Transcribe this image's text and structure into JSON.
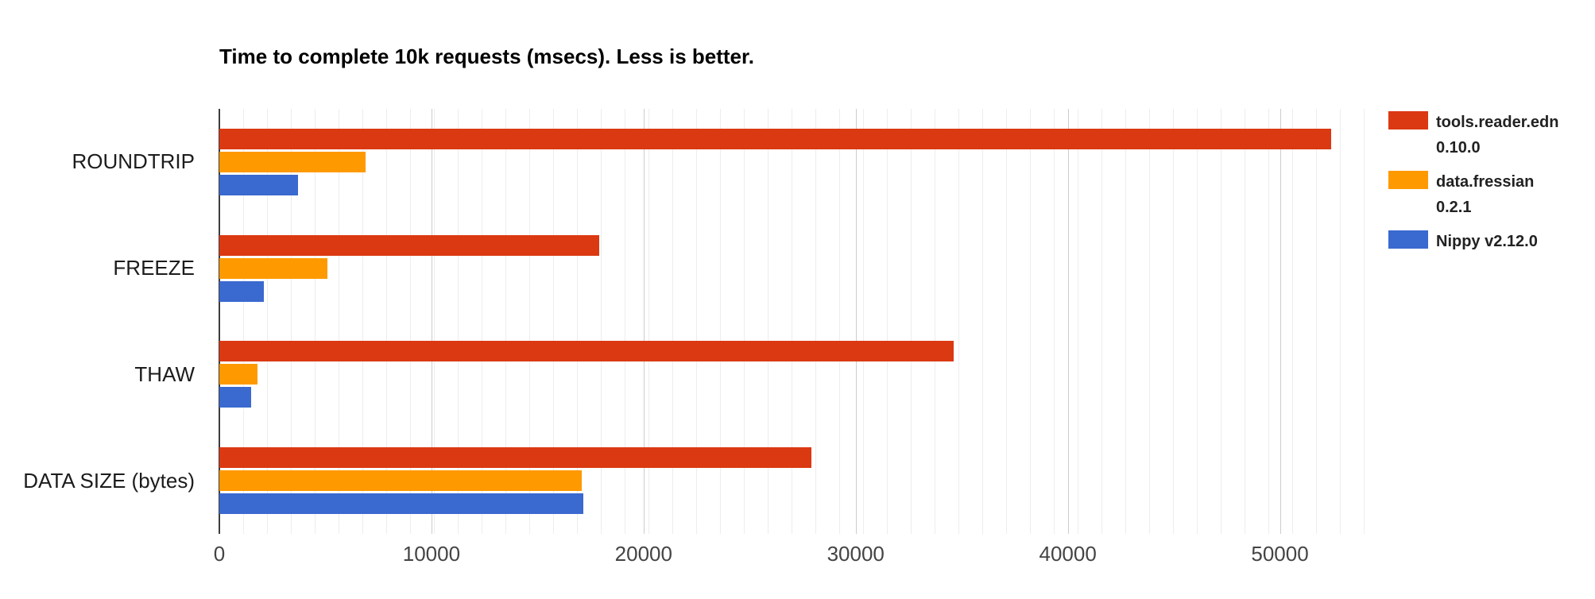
{
  "chart_data": {
    "type": "bar",
    "orientation": "horizontal",
    "title": "Time to complete 10k requests (msecs). Less is better.",
    "categories": [
      "ROUNDTRIP",
      "FREEZE",
      "THAW",
      "DATA SIZE (bytes)"
    ],
    "series": [
      {
        "name": "tools.reader.edn 0.10.0",
        "legend_lines": [
          "tools.reader.edn",
          "0.10.0"
        ],
        "color": "#db3912",
        "values": [
          52400,
          17900,
          34600,
          27900
        ]
      },
      {
        "name": "data.fressian 0.2.1",
        "legend_lines": [
          "data.fressian",
          "0.2.1"
        ],
        "color": "#ff9900",
        "values": [
          6900,
          5100,
          1800,
          17100
        ]
      },
      {
        "name": "Nippy v2.12.0",
        "legend_lines": [
          "Nippy v2.12.0"
        ],
        "color": "#3a69cf",
        "values": [
          3700,
          2100,
          1500,
          17150
        ]
      }
    ],
    "x_tick_values": [
      0,
      10000,
      20000,
      30000,
      40000,
      50000
    ],
    "x_tick_labels": [
      "0",
      "10000",
      "20000",
      "30000",
      "40000",
      "50000"
    ],
    "xlim": [
      0,
      54700
    ],
    "grid": true,
    "legend_position": "right"
  },
  "colors": {
    "minor_gridline": "#ededed",
    "major_gridline": "#cccccc",
    "axis_line": "#3d3d3d",
    "tick_label": "#444444",
    "category_label": "#1c1c1c",
    "title": "#000000",
    "legend_text": "#222222",
    "background": "#ffffff"
  }
}
